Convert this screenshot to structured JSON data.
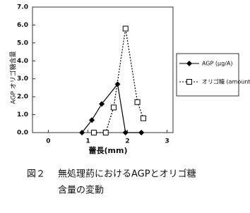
{
  "chart_data": {
    "type": "line",
    "y_label": "AGP オリゴ糖含量",
    "x_label": "蕾長(mm)",
    "xlim": [
      -0.4,
      3.15
    ],
    "xticks": [
      0,
      1,
      2,
      3
    ],
    "ylim": [
      0,
      7
    ],
    "yticks": [
      {
        "value": 0,
        "label": "0.0"
      },
      {
        "value": 1,
        "label": "1.0"
      },
      {
        "value": 2,
        "label": "2.0"
      },
      {
        "value": 3,
        "label": "3.0"
      },
      {
        "value": 4,
        "label": "4.0"
      },
      {
        "value": 5,
        "label": "5.0"
      },
      {
        "value": 6,
        "label": "6.0"
      },
      {
        "value": 7,
        "label": "7.0"
      }
    ],
    "grid": false,
    "series": [
      {
        "name": "AGP (μg/A)",
        "color": "#000000",
        "marker": "diamond",
        "dash": "solid",
        "x": [
          0.85,
          1.1,
          1.35,
          1.75,
          1.95,
          2.35
        ],
        "values": [
          0,
          0.7,
          1.6,
          2.7,
          0,
          0
        ]
      },
      {
        "name": "オリゴ糖 (amount)",
        "color": "#000000",
        "marker": "square",
        "dash": "dotted",
        "x": [
          1.15,
          1.45,
          1.65,
          1.95,
          2.25,
          2.4
        ],
        "values": [
          0,
          0,
          1.4,
          5.8,
          1.7,
          0.8
        ]
      }
    ]
  },
  "caption": {
    "label": "図２",
    "lines": [
      "無処理葯におけるAGPとオリゴ糖",
      "含量の変動"
    ]
  }
}
